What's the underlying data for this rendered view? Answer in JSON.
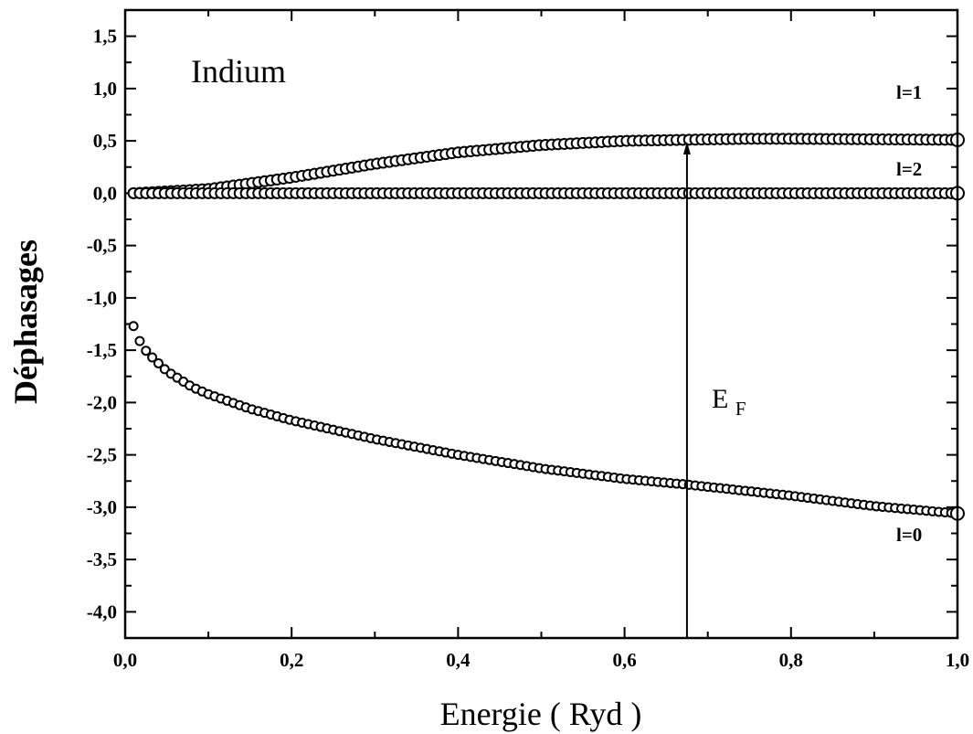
{
  "chart_data": {
    "type": "scatter",
    "title": "Indium",
    "xlabel": "Energie ( Ryd )",
    "ylabel": "Déphasages",
    "xlim": [
      0.0,
      1.0
    ],
    "ylim": [
      -4.25,
      1.75
    ],
    "x_ticks": [
      "0,0",
      "0,2",
      "0,4",
      "0,6",
      "0,8",
      "1,0"
    ],
    "y_ticks": [
      "1,5",
      "1,0",
      "0,5",
      "0,0",
      "-0,5",
      "-1,0",
      "-1,5",
      "-2,0",
      "-2,5",
      "-3,0",
      "-3,5",
      "-4,0"
    ],
    "grid": false,
    "series": [
      {
        "name": "l=1",
        "x": [
          0.01,
          0.1,
          0.2,
          0.3,
          0.4,
          0.5,
          0.6,
          0.67,
          0.75,
          0.8,
          0.9,
          1.0
        ],
        "y": [
          0.0,
          0.04,
          0.15,
          0.28,
          0.39,
          0.46,
          0.5,
          0.51,
          0.52,
          0.52,
          0.515,
          0.51
        ]
      },
      {
        "name": "l=2",
        "x": [
          0.01,
          0.2,
          0.4,
          0.6,
          0.8,
          1.0
        ],
        "y": [
          0.0,
          0.0,
          0.0,
          0.0,
          0.0,
          0.0
        ]
      },
      {
        "name": "l=0",
        "x": [
          0.01,
          0.02,
          0.03,
          0.05,
          0.08,
          0.1,
          0.15,
          0.2,
          0.3,
          0.4,
          0.5,
          0.6,
          0.67,
          0.8,
          0.9,
          1.0
        ],
        "y": [
          -1.27,
          -1.46,
          -1.55,
          -1.7,
          -1.85,
          -1.92,
          -2.06,
          -2.17,
          -2.35,
          -2.5,
          -2.63,
          -2.73,
          -2.78,
          -2.89,
          -2.99,
          -3.06
        ]
      }
    ],
    "annotations": {
      "l1": "l=1",
      "l2": "l=2",
      "l0": "l=0",
      "ef_main": "E",
      "ef_sub": "F",
      "fermi_energy": 0.675,
      "fermi_arrow_top": 0.51
    }
  }
}
